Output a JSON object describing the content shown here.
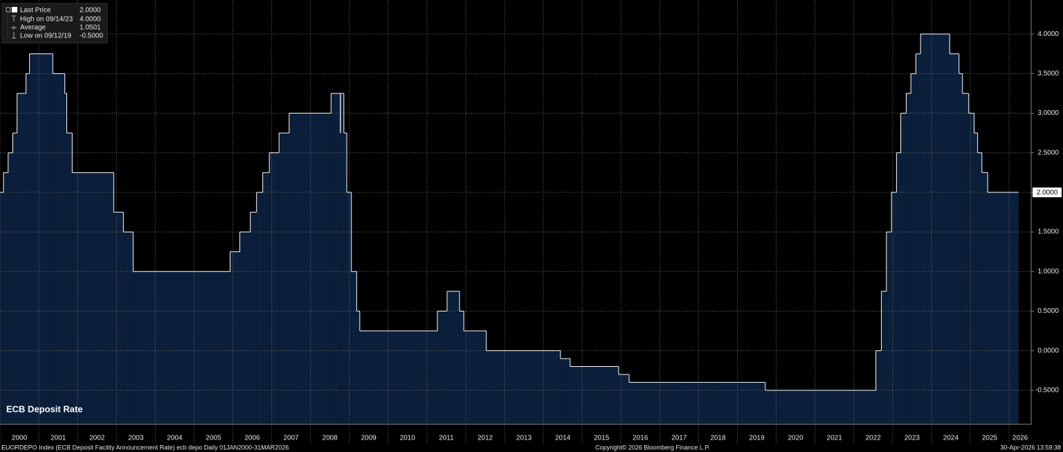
{
  "chart_data": {
    "type": "step",
    "title": "ECB Deposit Rate",
    "legend": [
      {
        "name": "Last Price",
        "value": "2.0000"
      },
      {
        "name": "High on 09/14/23",
        "value": "4.0000"
      },
      {
        "name": "Average",
        "value": "1.0501"
      },
      {
        "name": "Low on 09/12/19",
        "value": "-0.5000"
      }
    ],
    "series": [
      {
        "name": "Last Price",
        "color": "#ffffff",
        "fill": "#0b1f3a",
        "x": [
          2000.0,
          2000.09,
          2000.21,
          2000.33,
          2000.44,
          2000.67,
          2000.76,
          2001.36,
          2001.67,
          2001.72,
          2001.86,
          2002.93,
          2003.18,
          2003.43,
          2005.93,
          2006.18,
          2006.45,
          2006.61,
          2006.77,
          2006.94,
          2007.19,
          2007.45,
          2008.53,
          2008.77,
          2008.775,
          2008.86,
          2008.935,
          2009.055,
          2009.19,
          2009.27,
          2011.27,
          2011.52,
          2011.84,
          2011.95,
          2012.53,
          2014.44,
          2014.69,
          2015.94,
          2016.21,
          2019.72,
          2022.57,
          2022.71,
          2022.84,
          2022.97,
          2023.1,
          2023.21,
          2023.35,
          2023.47,
          2023.6,
          2023.72,
          2024.47,
          2024.71,
          2024.8,
          2024.96,
          2025.1,
          2025.19,
          2025.3,
          2025.45,
          2026.247
        ],
        "values": [
          2.0,
          2.25,
          2.5,
          2.75,
          3.25,
          3.5,
          3.75,
          3.5,
          3.25,
          2.75,
          2.25,
          1.75,
          1.5,
          1.0,
          1.25,
          1.5,
          1.75,
          2.0,
          2.25,
          2.5,
          2.75,
          3.0,
          3.25,
          2.75,
          3.25,
          2.75,
          2.0,
          1.0,
          0.5,
          0.25,
          0.5,
          0.75,
          0.5,
          0.25,
          0.0,
          -0.1,
          -0.2,
          -0.3,
          -0.4,
          -0.5,
          0.0,
          0.75,
          1.5,
          2.0,
          2.5,
          3.0,
          3.25,
          3.5,
          3.75,
          4.0,
          3.75,
          3.5,
          3.25,
          3.0,
          2.75,
          2.5,
          2.25,
          2.0,
          2.0
        ]
      }
    ],
    "xlim": [
      2000,
      2026.57
    ],
    "xticks": [
      2000,
      2001,
      2002,
      2003,
      2004,
      2005,
      2006,
      2007,
      2008,
      2009,
      2010,
      2011,
      2012,
      2013,
      2014,
      2015,
      2016,
      2017,
      2018,
      2019,
      2020,
      2021,
      2022,
      2023,
      2024,
      2025,
      2026
    ],
    "ylim": [
      -0.93,
      4.43
    ],
    "yticks": [
      {
        "value": -0.5,
        "label": "-0.5000"
      },
      {
        "value": 0,
        "label": "0.0000"
      },
      {
        "value": 0.5,
        "label": "0.5000"
      },
      {
        "value": 1,
        "label": "1.0000"
      },
      {
        "value": 1.5,
        "label": "1.5000"
      },
      {
        "value": 2,
        "label": "2.0000"
      },
      {
        "value": 2.5,
        "label": "2.5000"
      },
      {
        "value": 3,
        "label": "3.0000"
      },
      {
        "value": 3.5,
        "label": "3.5000"
      },
      {
        "value": 4,
        "label": "4.0000"
      }
    ],
    "grid": true,
    "footer": {
      "source": "EUORDEPO Index (ECB Deposit Facility Announcement Rate) ecb depo Daily 01JAN2000-31MAR2026",
      "copyright": "Copyright© 2026 Bloomberg Finance L.P.",
      "timestamp": "30-Apr-2026 13:59:38"
    }
  }
}
